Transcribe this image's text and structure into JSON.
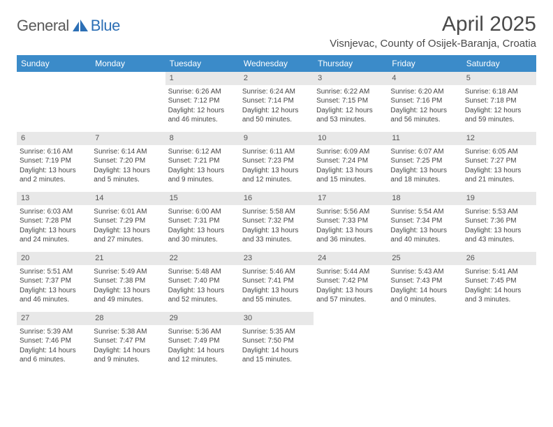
{
  "brand": {
    "general": "General",
    "blue": "Blue"
  },
  "title": "April 2025",
  "location": "Visnjevac, County of Osijek-Baranja, Croatia",
  "colors": {
    "header_bg": "#3b8bc9",
    "header_text": "#ffffff",
    "daybar_bg": "#e8e8e8",
    "body_text": "#444444",
    "title_text": "#4a4a4a",
    "logo_gray": "#5a5a5a",
    "logo_blue": "#2c6fb5"
  },
  "weekdays": [
    "Sunday",
    "Monday",
    "Tuesday",
    "Wednesday",
    "Thursday",
    "Friday",
    "Saturday"
  ],
  "weeks": [
    [
      null,
      null,
      {
        "n": "1",
        "sr": "Sunrise: 6:26 AM",
        "ss": "Sunset: 7:12 PM",
        "d1": "Daylight: 12 hours",
        "d2": "and 46 minutes."
      },
      {
        "n": "2",
        "sr": "Sunrise: 6:24 AM",
        "ss": "Sunset: 7:14 PM",
        "d1": "Daylight: 12 hours",
        "d2": "and 50 minutes."
      },
      {
        "n": "3",
        "sr": "Sunrise: 6:22 AM",
        "ss": "Sunset: 7:15 PM",
        "d1": "Daylight: 12 hours",
        "d2": "and 53 minutes."
      },
      {
        "n": "4",
        "sr": "Sunrise: 6:20 AM",
        "ss": "Sunset: 7:16 PM",
        "d1": "Daylight: 12 hours",
        "d2": "and 56 minutes."
      },
      {
        "n": "5",
        "sr": "Sunrise: 6:18 AM",
        "ss": "Sunset: 7:18 PM",
        "d1": "Daylight: 12 hours",
        "d2": "and 59 minutes."
      }
    ],
    [
      {
        "n": "6",
        "sr": "Sunrise: 6:16 AM",
        "ss": "Sunset: 7:19 PM",
        "d1": "Daylight: 13 hours",
        "d2": "and 2 minutes."
      },
      {
        "n": "7",
        "sr": "Sunrise: 6:14 AM",
        "ss": "Sunset: 7:20 PM",
        "d1": "Daylight: 13 hours",
        "d2": "and 5 minutes."
      },
      {
        "n": "8",
        "sr": "Sunrise: 6:12 AM",
        "ss": "Sunset: 7:21 PM",
        "d1": "Daylight: 13 hours",
        "d2": "and 9 minutes."
      },
      {
        "n": "9",
        "sr": "Sunrise: 6:11 AM",
        "ss": "Sunset: 7:23 PM",
        "d1": "Daylight: 13 hours",
        "d2": "and 12 minutes."
      },
      {
        "n": "10",
        "sr": "Sunrise: 6:09 AM",
        "ss": "Sunset: 7:24 PM",
        "d1": "Daylight: 13 hours",
        "d2": "and 15 minutes."
      },
      {
        "n": "11",
        "sr": "Sunrise: 6:07 AM",
        "ss": "Sunset: 7:25 PM",
        "d1": "Daylight: 13 hours",
        "d2": "and 18 minutes."
      },
      {
        "n": "12",
        "sr": "Sunrise: 6:05 AM",
        "ss": "Sunset: 7:27 PM",
        "d1": "Daylight: 13 hours",
        "d2": "and 21 minutes."
      }
    ],
    [
      {
        "n": "13",
        "sr": "Sunrise: 6:03 AM",
        "ss": "Sunset: 7:28 PM",
        "d1": "Daylight: 13 hours",
        "d2": "and 24 minutes."
      },
      {
        "n": "14",
        "sr": "Sunrise: 6:01 AM",
        "ss": "Sunset: 7:29 PM",
        "d1": "Daylight: 13 hours",
        "d2": "and 27 minutes."
      },
      {
        "n": "15",
        "sr": "Sunrise: 6:00 AM",
        "ss": "Sunset: 7:31 PM",
        "d1": "Daylight: 13 hours",
        "d2": "and 30 minutes."
      },
      {
        "n": "16",
        "sr": "Sunrise: 5:58 AM",
        "ss": "Sunset: 7:32 PM",
        "d1": "Daylight: 13 hours",
        "d2": "and 33 minutes."
      },
      {
        "n": "17",
        "sr": "Sunrise: 5:56 AM",
        "ss": "Sunset: 7:33 PM",
        "d1": "Daylight: 13 hours",
        "d2": "and 36 minutes."
      },
      {
        "n": "18",
        "sr": "Sunrise: 5:54 AM",
        "ss": "Sunset: 7:34 PM",
        "d1": "Daylight: 13 hours",
        "d2": "and 40 minutes."
      },
      {
        "n": "19",
        "sr": "Sunrise: 5:53 AM",
        "ss": "Sunset: 7:36 PM",
        "d1": "Daylight: 13 hours",
        "d2": "and 43 minutes."
      }
    ],
    [
      {
        "n": "20",
        "sr": "Sunrise: 5:51 AM",
        "ss": "Sunset: 7:37 PM",
        "d1": "Daylight: 13 hours",
        "d2": "and 46 minutes."
      },
      {
        "n": "21",
        "sr": "Sunrise: 5:49 AM",
        "ss": "Sunset: 7:38 PM",
        "d1": "Daylight: 13 hours",
        "d2": "and 49 minutes."
      },
      {
        "n": "22",
        "sr": "Sunrise: 5:48 AM",
        "ss": "Sunset: 7:40 PM",
        "d1": "Daylight: 13 hours",
        "d2": "and 52 minutes."
      },
      {
        "n": "23",
        "sr": "Sunrise: 5:46 AM",
        "ss": "Sunset: 7:41 PM",
        "d1": "Daylight: 13 hours",
        "d2": "and 55 minutes."
      },
      {
        "n": "24",
        "sr": "Sunrise: 5:44 AM",
        "ss": "Sunset: 7:42 PM",
        "d1": "Daylight: 13 hours",
        "d2": "and 57 minutes."
      },
      {
        "n": "25",
        "sr": "Sunrise: 5:43 AM",
        "ss": "Sunset: 7:43 PM",
        "d1": "Daylight: 14 hours",
        "d2": "and 0 minutes."
      },
      {
        "n": "26",
        "sr": "Sunrise: 5:41 AM",
        "ss": "Sunset: 7:45 PM",
        "d1": "Daylight: 14 hours",
        "d2": "and 3 minutes."
      }
    ],
    [
      {
        "n": "27",
        "sr": "Sunrise: 5:39 AM",
        "ss": "Sunset: 7:46 PM",
        "d1": "Daylight: 14 hours",
        "d2": "and 6 minutes."
      },
      {
        "n": "28",
        "sr": "Sunrise: 5:38 AM",
        "ss": "Sunset: 7:47 PM",
        "d1": "Daylight: 14 hours",
        "d2": "and 9 minutes."
      },
      {
        "n": "29",
        "sr": "Sunrise: 5:36 AM",
        "ss": "Sunset: 7:49 PM",
        "d1": "Daylight: 14 hours",
        "d2": "and 12 minutes."
      },
      {
        "n": "30",
        "sr": "Sunrise: 5:35 AM",
        "ss": "Sunset: 7:50 PM",
        "d1": "Daylight: 14 hours",
        "d2": "and 15 minutes."
      },
      null,
      null,
      null
    ]
  ]
}
